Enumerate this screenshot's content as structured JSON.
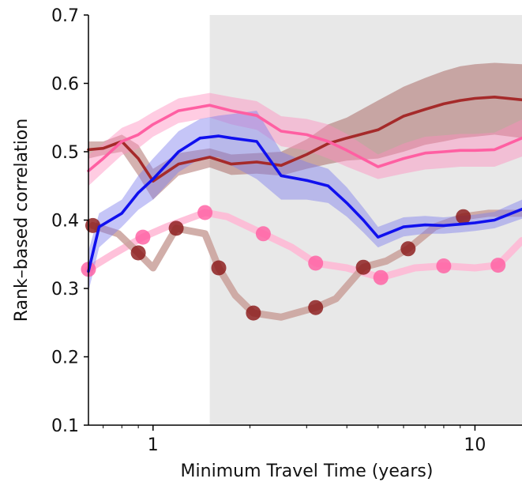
{
  "chart_data": {
    "type": "line",
    "xlabel": "Minimum Travel Time (years)",
    "ylabel": "Rank–based correlation",
    "x_scale": "log",
    "xlim": [
      0.63,
      14
    ],
    "ylim": [
      0.1,
      0.7
    ],
    "yticks": [
      0.1,
      0.2,
      0.3,
      0.4,
      0.5,
      0.6,
      0.7
    ],
    "ytick_labels": [
      "0.1",
      "0.2",
      "0.3",
      "0.4",
      "0.5",
      "0.6",
      "0.7"
    ],
    "xticks": [
      1,
      10
    ],
    "xtick_labels": [
      "1",
      "10"
    ],
    "shaded_region": {
      "x_start": 1.5,
      "x_end": 14,
      "color": "#e8e8e8"
    },
    "grid": false,
    "legend": "none",
    "series": [
      {
        "style": "line",
        "color": "#a52a2a",
        "band_color": "#a0554f",
        "x": [
          0.63,
          0.7,
          0.8,
          0.9,
          1.0,
          1.2,
          1.5,
          1.75,
          2.1,
          2.5,
          3.0,
          3.5,
          4.0,
          5.0,
          6.0,
          7.0,
          8.0,
          9.0,
          10.0,
          11.5,
          14.0
        ],
        "y": [
          0.503,
          0.505,
          0.515,
          0.49,
          0.457,
          0.482,
          0.492,
          0.482,
          0.485,
          0.48,
          0.496,
          0.512,
          0.52,
          0.532,
          0.552,
          0.562,
          0.57,
          0.575,
          0.578,
          0.58,
          0.576
        ],
        "lower": [
          0.49,
          0.495,
          0.5,
          0.465,
          0.43,
          0.465,
          0.477,
          0.466,
          0.468,
          0.465,
          0.475,
          0.482,
          0.487,
          0.49,
          0.5,
          0.51,
          0.515,
          0.52,
          0.522,
          0.525,
          0.52
        ],
        "upper": [
          0.515,
          0.515,
          0.525,
          0.51,
          0.475,
          0.498,
          0.505,
          0.496,
          0.498,
          0.5,
          0.518,
          0.54,
          0.55,
          0.575,
          0.595,
          0.608,
          0.618,
          0.625,
          0.628,
          0.63,
          0.628
        ]
      },
      {
        "style": "line",
        "color": "#ff5fa2",
        "band_color": "#ff8fbf",
        "x": [
          0.63,
          0.7,
          0.8,
          0.9,
          1.0,
          1.2,
          1.5,
          1.75,
          2.1,
          2.5,
          3.0,
          3.5,
          4.0,
          5.0,
          6.0,
          7.0,
          8.0,
          9.0,
          10.0,
          11.5,
          14.0
        ],
        "y": [
          0.472,
          0.49,
          0.515,
          0.525,
          0.54,
          0.56,
          0.568,
          0.56,
          0.553,
          0.53,
          0.525,
          0.515,
          0.502,
          0.478,
          0.49,
          0.498,
          0.5,
          0.502,
          0.502,
          0.503,
          0.52
        ],
        "lower": [
          0.45,
          0.47,
          0.495,
          0.505,
          0.522,
          0.542,
          0.55,
          0.54,
          0.532,
          0.508,
          0.502,
          0.49,
          0.478,
          0.46,
          0.468,
          0.474,
          0.476,
          0.478,
          0.478,
          0.478,
          0.493
        ],
        "upper": [
          0.495,
          0.512,
          0.535,
          0.545,
          0.558,
          0.578,
          0.586,
          0.58,
          0.574,
          0.552,
          0.548,
          0.54,
          0.526,
          0.496,
          0.512,
          0.522,
          0.524,
          0.526,
          0.526,
          0.528,
          0.547
        ]
      },
      {
        "style": "line",
        "color": "#1010ee",
        "band_color": "#7f7fee",
        "x": [
          0.63,
          0.68,
          0.8,
          0.9,
          1.0,
          1.2,
          1.4,
          1.6,
          1.75,
          2.1,
          2.5,
          3.0,
          3.5,
          4.0,
          4.5,
          5.0,
          6.0,
          7.0,
          8.0,
          9.0,
          10.0,
          11.5,
          14.0
        ],
        "y": [
          0.325,
          0.39,
          0.41,
          0.44,
          0.46,
          0.5,
          0.52,
          0.523,
          0.52,
          0.515,
          0.465,
          0.458,
          0.45,
          0.425,
          0.4,
          0.375,
          0.39,
          0.393,
          0.392,
          0.394,
          0.396,
          0.4,
          0.416
        ],
        "lower": [
          0.295,
          0.36,
          0.39,
          0.415,
          0.43,
          0.47,
          0.49,
          0.492,
          0.48,
          0.46,
          0.43,
          0.43,
          0.425,
          0.405,
          0.382,
          0.36,
          0.376,
          0.38,
          0.38,
          0.382,
          0.384,
          0.388,
          0.402
        ],
        "upper": [
          0.355,
          0.41,
          0.43,
          0.465,
          0.49,
          0.53,
          0.548,
          0.553,
          0.555,
          0.56,
          0.5,
          0.485,
          0.475,
          0.448,
          0.418,
          0.39,
          0.404,
          0.406,
          0.404,
          0.406,
          0.408,
          0.412,
          0.43
        ]
      },
      {
        "style": "markers",
        "color": "#ff5fa2",
        "line_color": "#ffb6d3",
        "x": [
          0.63,
          0.93,
          1.45,
          2.2,
          3.2,
          5.1,
          8.0,
          11.8
        ],
        "y": [
          0.328,
          0.375,
          0.411,
          0.38,
          0.337,
          0.316,
          0.333,
          0.334
        ],
        "line_x": [
          0.63,
          0.75,
          0.93,
          1.1,
          1.45,
          1.7,
          2.2,
          2.7,
          3.2,
          4.0,
          5.1,
          6.5,
          8.0,
          10.0,
          11.8,
          14.0
        ],
        "line_y": [
          0.328,
          0.35,
          0.375,
          0.39,
          0.411,
          0.405,
          0.38,
          0.36,
          0.337,
          0.33,
          0.316,
          0.33,
          0.333,
          0.33,
          0.334,
          0.37
        ]
      },
      {
        "style": "markers",
        "color": "#8b1a1a",
        "line_color": "#c9a09a",
        "x": [
          0.65,
          0.9,
          1.18,
          1.6,
          2.05,
          3.2,
          4.5,
          6.2,
          9.2
        ],
        "y": [
          0.392,
          0.352,
          0.388,
          0.33,
          0.264,
          0.272,
          0.331,
          0.358,
          0.405
        ],
        "line_x": [
          0.65,
          0.78,
          0.9,
          1.0,
          1.18,
          1.45,
          1.6,
          1.8,
          2.05,
          2.5,
          3.2,
          3.7,
          4.5,
          5.3,
          6.2,
          7.5,
          9.2,
          11.0,
          14.0
        ],
        "line_y": [
          0.392,
          0.38,
          0.352,
          0.33,
          0.388,
          0.38,
          0.33,
          0.29,
          0.264,
          0.258,
          0.272,
          0.285,
          0.331,
          0.34,
          0.358,
          0.39,
          0.405,
          0.41,
          0.41
        ]
      }
    ]
  }
}
